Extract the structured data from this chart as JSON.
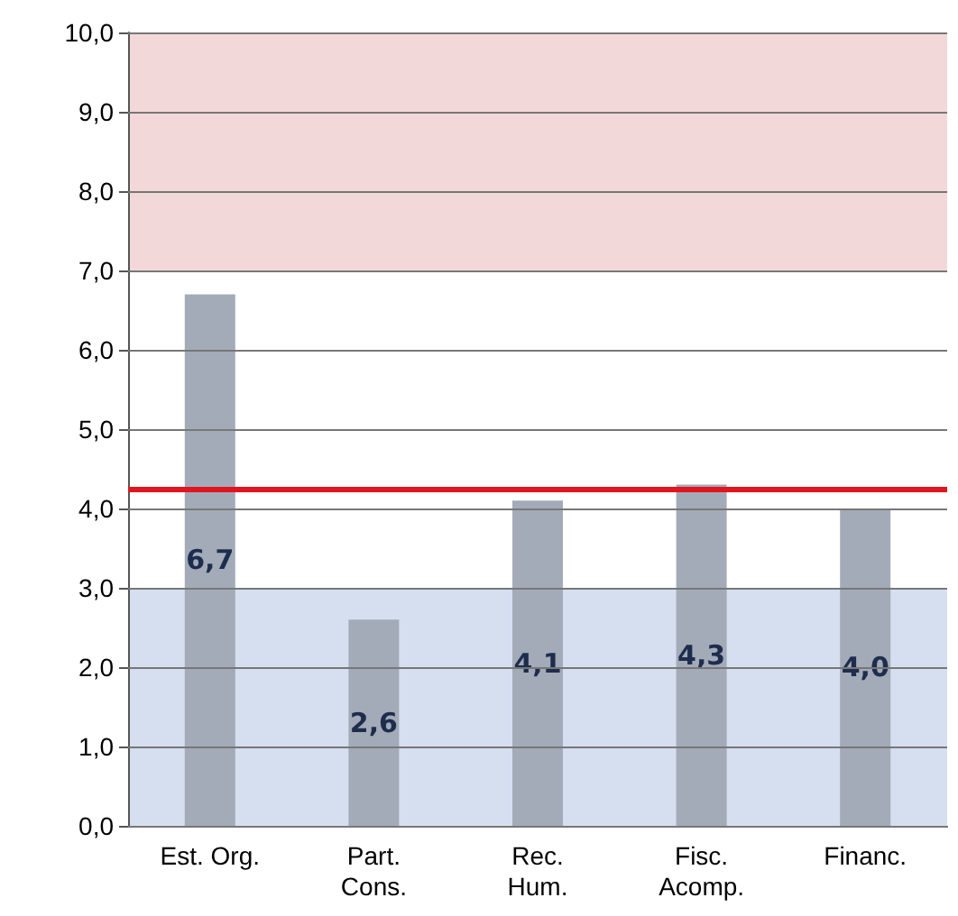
{
  "chart_data": {
    "type": "bar",
    "categories": [
      "Est. Org.",
      "Part.\nCons.",
      "Rec.\nHum.",
      "Fisc.\nAcomp.",
      "Financ."
    ],
    "values": [
      6.7,
      2.6,
      4.1,
      4.3,
      4.0
    ],
    "value_labels": [
      "6,7",
      "2,6",
      "4,1",
      "4,3",
      "4,0"
    ],
    "color": "#a3abb9",
    "ylim": [
      0,
      10
    ],
    "yticks": [
      {
        "value": 0,
        "label": "0,0"
      },
      {
        "value": 1,
        "label": "1,0"
      },
      {
        "value": 2,
        "label": "2,0"
      },
      {
        "value": 3,
        "label": "3,0"
      },
      {
        "value": 4,
        "label": "4,0"
      },
      {
        "value": 5,
        "label": "5,0"
      },
      {
        "value": 6,
        "label": "6,0"
      },
      {
        "value": 7,
        "label": "7,0"
      },
      {
        "value": 8,
        "label": "8,0"
      },
      {
        "value": 9,
        "label": "9,0"
      },
      {
        "value": 10,
        "label": "10,0"
      }
    ],
    "grid": "y",
    "bands": [
      {
        "axis": "y",
        "from": 0,
        "to": 3,
        "color": "#d5dff0"
      },
      {
        "axis": "y",
        "from": 7,
        "to": 10,
        "color": "#f3d8da"
      }
    ],
    "ref_lines": [
      {
        "axis": "y",
        "value": 4.25,
        "color": "#e0151e",
        "line_style": "solid"
      }
    ]
  }
}
